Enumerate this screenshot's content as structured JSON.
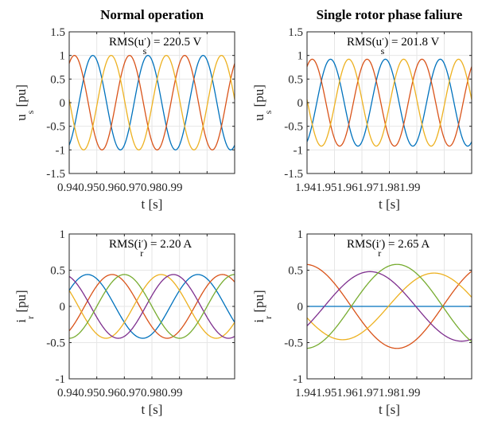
{
  "colors": {
    "phase_a": "#0072BD",
    "phase_b": "#D95319",
    "phase_c": "#EDB120",
    "phase_d": "#7E2F8E",
    "phase_e": "#77AC30",
    "grid": "#e6e6e6",
    "axis": "#262626"
  },
  "chart_data": [
    {
      "type": "line",
      "title": "Normal operation",
      "annotation": "RMS(u′ₛ) = 220.5 V",
      "annotation_parts": {
        "pre": "RMS(u",
        "sub": "s",
        "post": ") = 220.5 V"
      },
      "ylabel_main": "u",
      "ylabel_sub": "s",
      "ylabel_unit": " [pu]",
      "xlabel": "t [s]",
      "ylim": [
        -1.5,
        1.5
      ],
      "xlim": [
        0.94,
        1.0
      ],
      "yticks": [
        "1.5",
        "1",
        "0.5",
        "0",
        "-0.5",
        "-1",
        "-1.5"
      ],
      "yticks_values": [
        1.5,
        1,
        0.5,
        0,
        -0.5,
        -1,
        -1.5
      ],
      "xticks_text": "0.940.950.960.970.980.99",
      "grid": true,
      "series": [
        {
          "color_key": "phase_a",
          "amplitude": 1.0,
          "frequency_hz": 50,
          "phase_deg": -64
        },
        {
          "color_key": "phase_b",
          "amplitude": 1.0,
          "frequency_hz": 50,
          "phase_deg": 56
        },
        {
          "color_key": "phase_c",
          "amplitude": 1.0,
          "frequency_hz": 50,
          "phase_deg": 176
        }
      ]
    },
    {
      "type": "line",
      "title": "Single rotor phase faliure",
      "annotation_parts": {
        "pre": "RMS(u",
        "sub": "s",
        "post": ") = 201.8 V"
      },
      "ylabel_main": "u",
      "ylabel_sub": "s",
      "ylabel_unit": " [pu]",
      "xlabel": "t [s]",
      "ylim": [
        -1.5,
        1.5
      ],
      "xlim": [
        1.94,
        2.0
      ],
      "yticks": [
        "1.5",
        "1",
        "0.5",
        "0",
        "-0.5",
        "-1",
        "-1.5"
      ],
      "yticks_values": [
        1.5,
        1,
        0.5,
        0,
        -0.5,
        -1,
        -1.5
      ],
      "xticks_text": "1.941.951.961.971.981.99",
      "grid": true,
      "series": [
        {
          "color_key": "phase_a",
          "amplitude": 0.92,
          "frequency_hz": 50,
          "phase_deg": -64
        },
        {
          "color_key": "phase_b",
          "amplitude": 0.92,
          "frequency_hz": 50,
          "phase_deg": 56
        },
        {
          "color_key": "phase_c",
          "amplitude": 0.92,
          "frequency_hz": 50,
          "phase_deg": 176
        }
      ]
    },
    {
      "type": "line",
      "annotation_parts": {
        "pre": "RMS(i",
        "sub": "r",
        "post": ") = 2.20 A"
      },
      "ylabel_main": "i",
      "ylabel_sub": "r",
      "ylabel_unit": " [pu]",
      "xlabel": "t [s]",
      "ylim": [
        -1,
        1
      ],
      "xlim": [
        0.94,
        1.0
      ],
      "yticks": [
        "1",
        "0.5",
        "0",
        "-0.5",
        "-1"
      ],
      "yticks_values": [
        1,
        0.5,
        0,
        -0.5,
        -1
      ],
      "xticks_text": "0.940.950.960.970.980.99",
      "grid": true,
      "series": [
        {
          "color_key": "phase_a",
          "amplitude": 0.44,
          "frequency_hz": 25,
          "phase_deg": 30
        },
        {
          "color_key": "phase_b",
          "amplitude": 0.44,
          "frequency_hz": 25,
          "phase_deg": -50
        },
        {
          "color_key": "phase_c",
          "amplitude": 0.44,
          "frequency_hz": 25,
          "phase_deg": 150
        },
        {
          "color_key": "phase_d",
          "amplitude": 0.44,
          "frequency_hz": 25,
          "phase_deg": 110
        },
        {
          "color_key": "phase_e",
          "amplitude": 0.44,
          "frequency_hz": 25,
          "phase_deg": 270
        }
      ]
    },
    {
      "type": "line",
      "annotation_parts": {
        "pre": "RMS(i",
        "sub": "r",
        "post": ") = 2.65 A"
      },
      "ylabel_main": "i",
      "ylabel_sub": "r",
      "ylabel_unit": " [pu]",
      "xlabel": "t [s]",
      "ylim": [
        -1,
        1
      ],
      "xlim": [
        1.94,
        2.0
      ],
      "yticks": [
        "1",
        "0.5",
        "0",
        "-0.5",
        "-1"
      ],
      "yticks_values": [
        1,
        0.5,
        0,
        -0.5,
        -1
      ],
      "xticks_text": "1.941.951.961.971.981.99",
      "grid": true,
      "series": [
        {
          "color_key": "phase_a",
          "amplitude": 0.0,
          "frequency_hz": 15,
          "phase_deg": 0
        },
        {
          "color_key": "phase_b",
          "amplitude": 0.58,
          "frequency_hz": 15,
          "phase_deg": 93
        },
        {
          "color_key": "phase_c",
          "amplitude": 0.46,
          "frequency_hz": 15,
          "phase_deg": 200
        },
        {
          "color_key": "phase_d",
          "amplitude": 0.48,
          "frequency_hz": 15,
          "phase_deg": 326
        },
        {
          "color_key": "phase_e",
          "amplitude": 0.58,
          "frequency_hz": 15,
          "phase_deg": 273
        }
      ]
    }
  ]
}
